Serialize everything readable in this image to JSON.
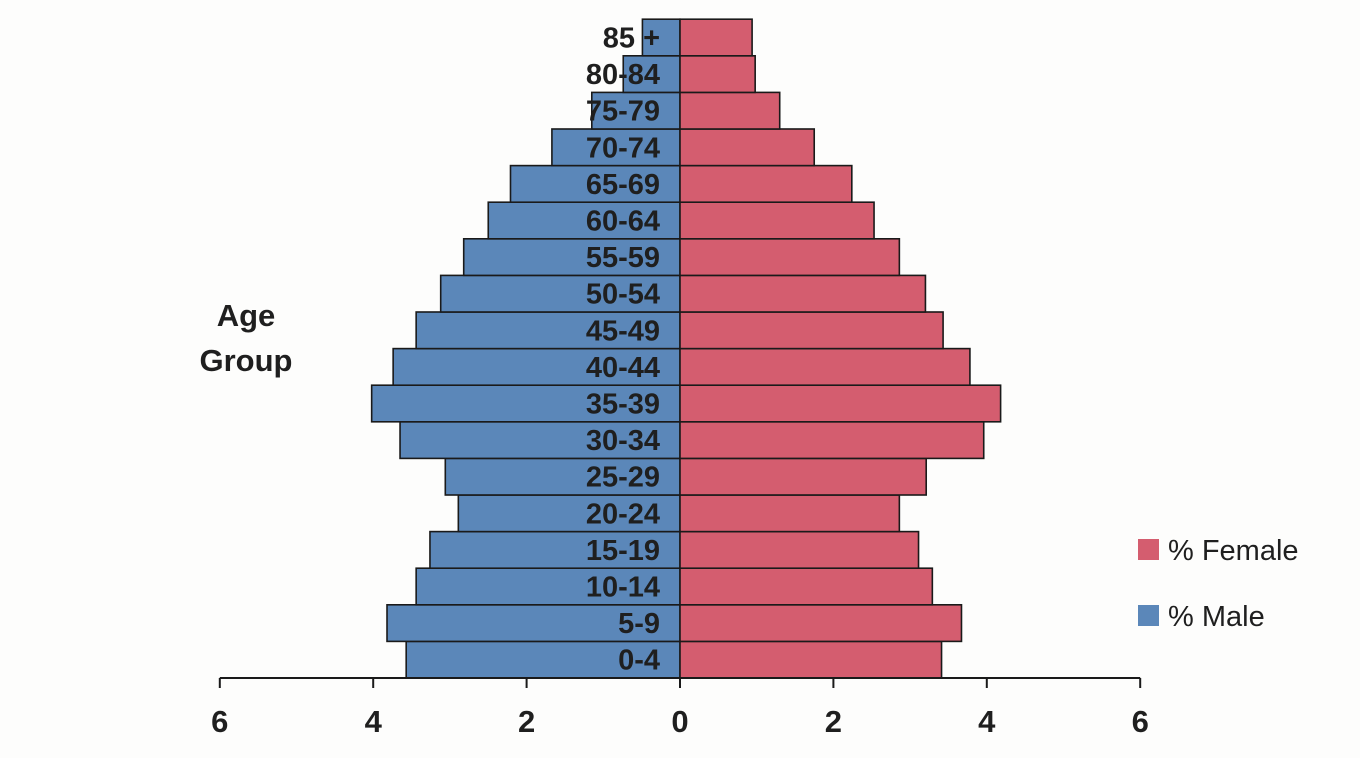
{
  "chart_data": {
    "type": "bar",
    "orientation": "horizontal",
    "layout": "population-pyramid",
    "title": "",
    "ylabel": "Age Group",
    "ylabel_lines": [
      "Age",
      "Group"
    ],
    "xlabel": "",
    "categories": [
      "0-4",
      "5-9",
      "10-14",
      "15-19",
      "20-24",
      "25-29",
      "30-34",
      "35-39",
      "40-44",
      "45-49",
      "50-54",
      "55-59",
      "60-64",
      "65-69",
      "70-74",
      "75-79",
      "80-84",
      "85 +"
    ],
    "series": [
      {
        "name": "% Male",
        "side": "left",
        "values": [
          3.57,
          3.82,
          3.44,
          3.26,
          2.89,
          3.06,
          3.65,
          4.02,
          3.74,
          3.44,
          3.12,
          2.82,
          2.5,
          2.21,
          1.67,
          1.15,
          0.74,
          0.49
        ]
      },
      {
        "name": "% Female",
        "side": "right",
        "values": [
          3.41,
          3.67,
          3.29,
          3.11,
          2.86,
          3.21,
          3.96,
          4.18,
          3.78,
          3.43,
          3.2,
          2.86,
          2.53,
          2.24,
          1.75,
          1.3,
          0.98,
          0.94
        ]
      }
    ],
    "xlim": [
      -6,
      6
    ],
    "xticks": [
      -6,
      -4,
      -2,
      0,
      2,
      4,
      6
    ],
    "xtick_labels": [
      "6",
      "4",
      "2",
      "0",
      "2",
      "4",
      "6"
    ],
    "colors": {
      "% Male": "#5b87b9",
      "% Female": "#d45d6f",
      "bar_edge": "#1a1a1a",
      "axis": "#1a1a1a"
    },
    "legend": {
      "position": "bottom-right",
      "entries": [
        "% Female",
        "% Male"
      ]
    },
    "grid": false
  }
}
